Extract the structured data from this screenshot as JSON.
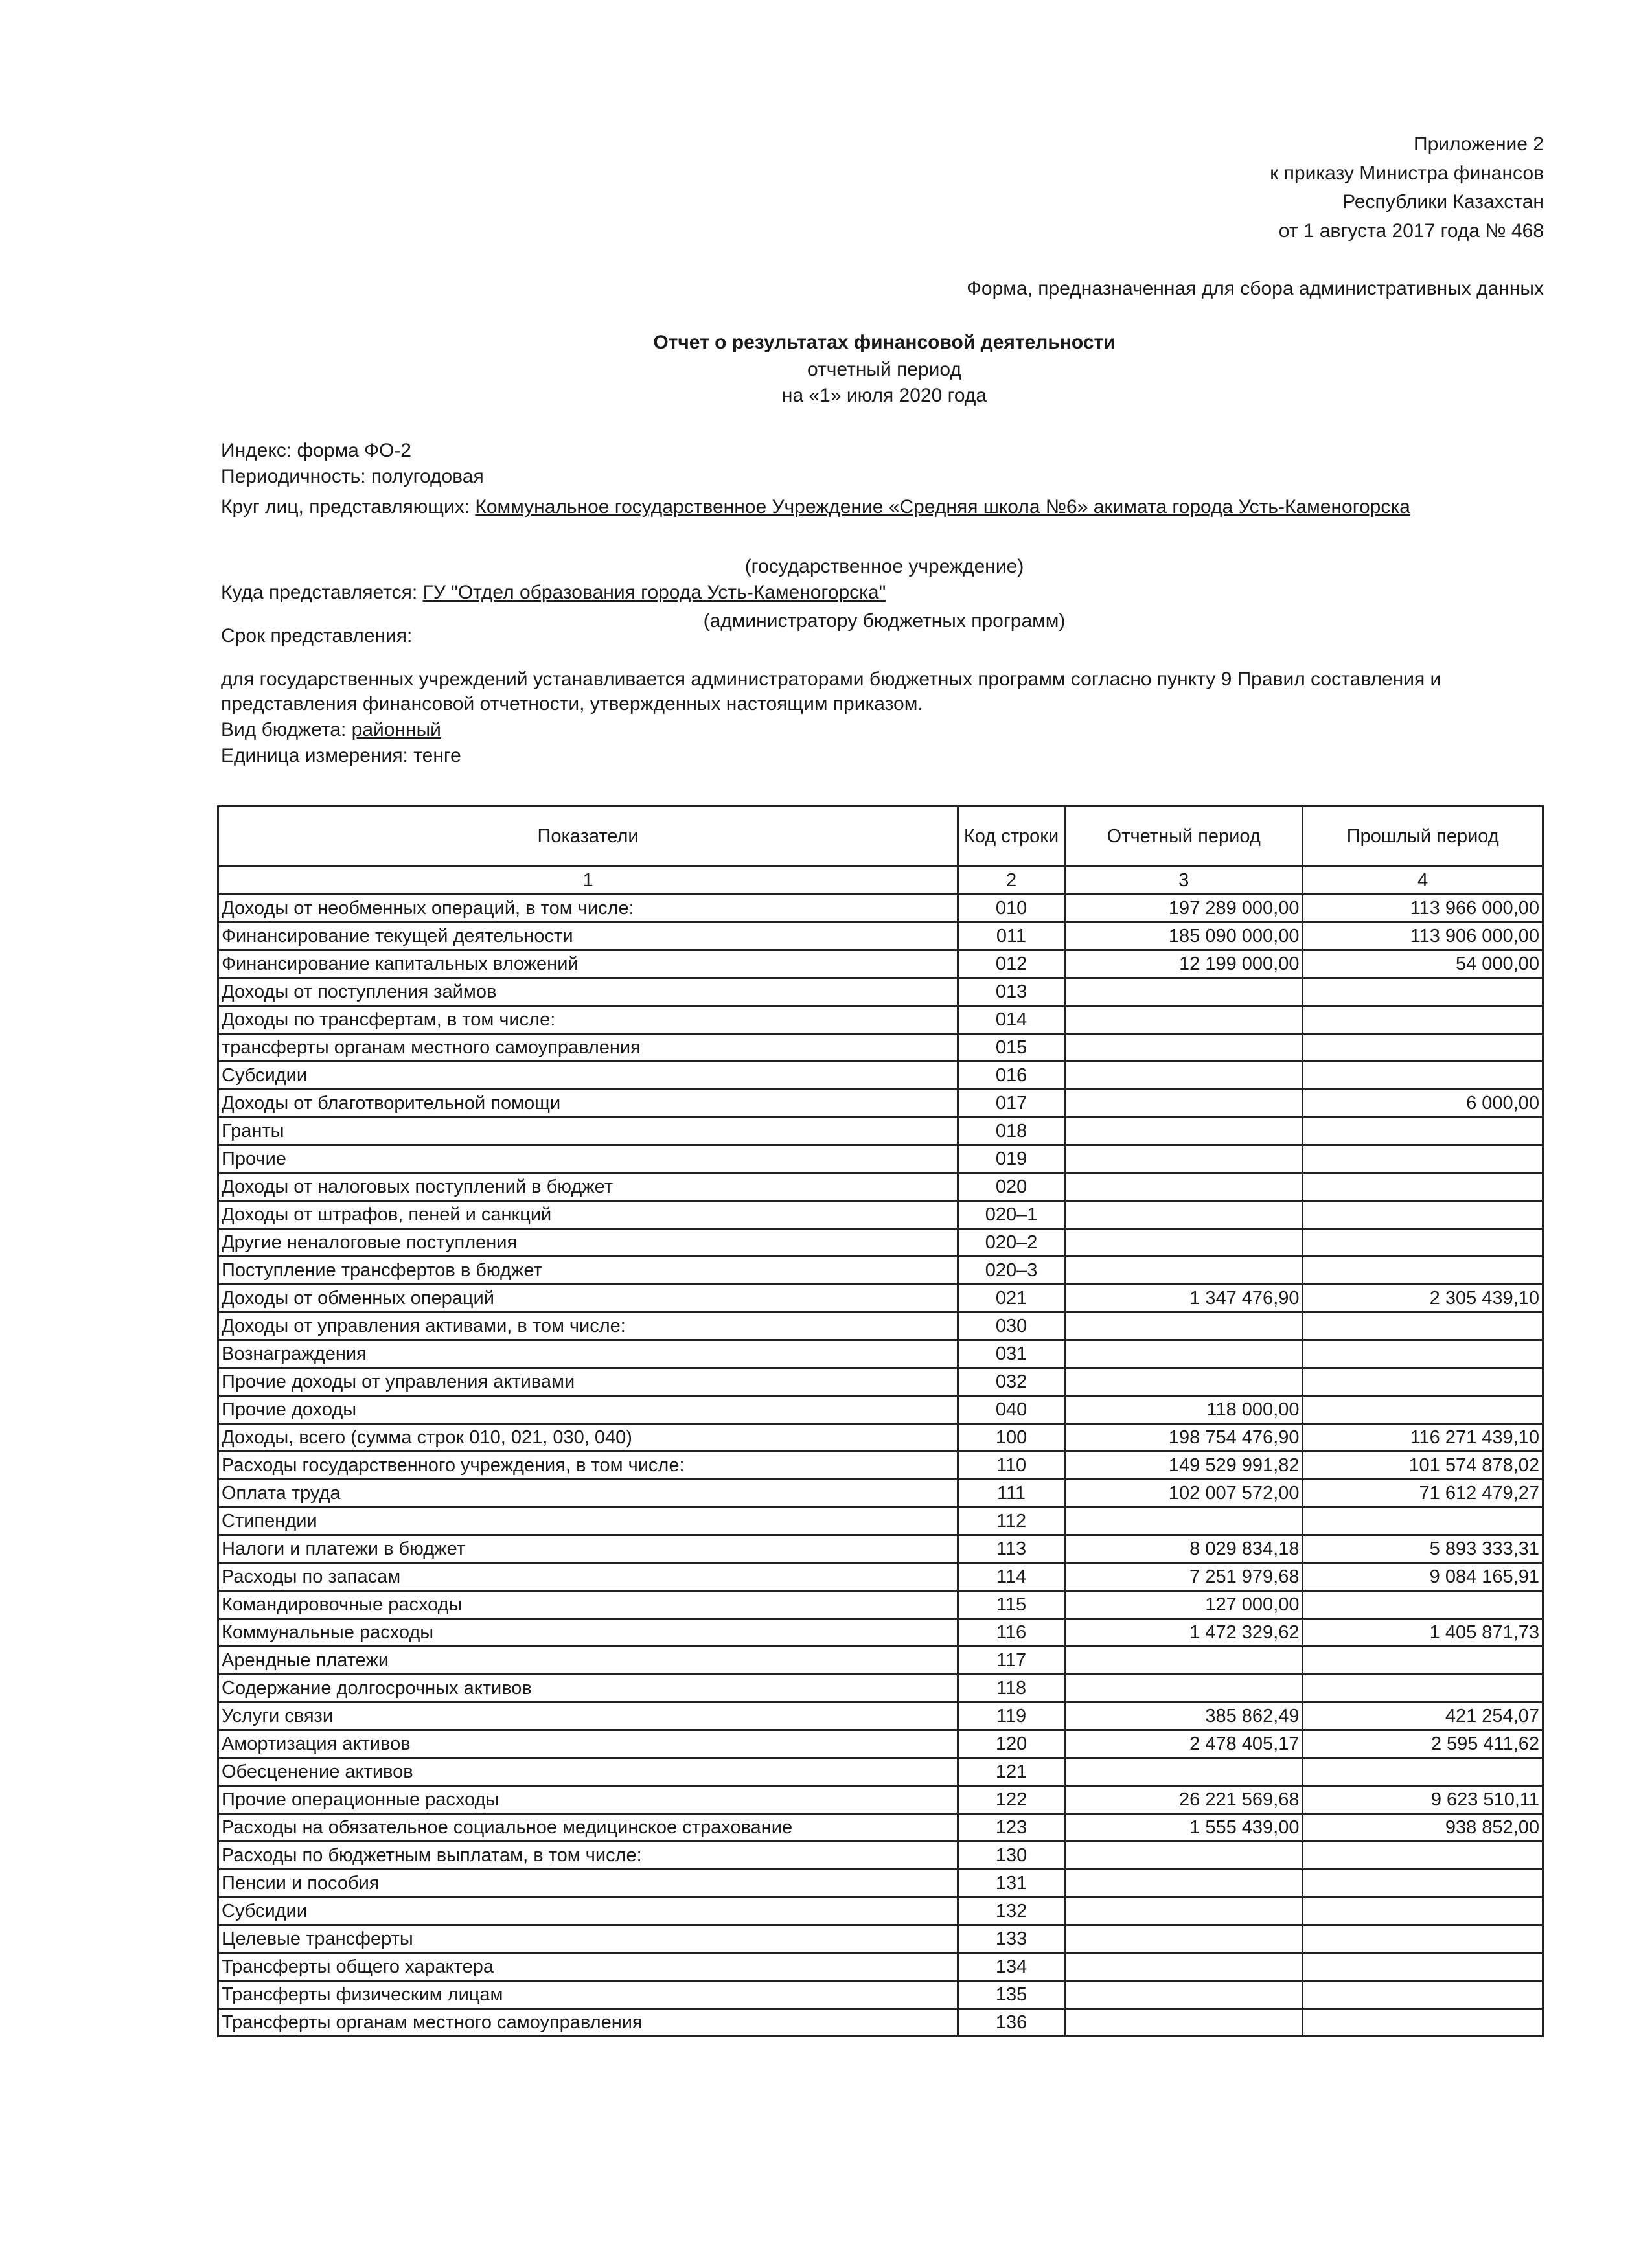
{
  "appendix": [
    "Приложение 2",
    "к приказу  Министра финансов",
    "Республики Казахстан",
    "от 1 августа 2017 года № 468"
  ],
  "form_note": "Форма, предназначенная для сбора административных данных",
  "title": "Отчет о результатах финансовой деятельности",
  "subtitle": "отчетный период",
  "date_line": "на «1» июля 2020 года",
  "index": "Индекс: форма ФО-2",
  "periodicity": "Периодичность: полугодовая",
  "submitters_label": "Круг лиц, представляющих: ",
  "submitters_value": "Коммунальное государственное Учреждение «Средняя школа №6» акимата города Усть-Каменогорска",
  "submitters_note": "(государственное учреждение)",
  "recipient_label": "Куда представляется: ",
  "recipient_value": "ГУ \"Отдел образования города Усть-Каменогорска\"",
  "recipient_note": "(администратору бюджетных программ)",
  "deadline_label": "Срок представления:",
  "deadline_text_1": "для государственных учреждений устанавливается администраторами бюджетных программ согласно пункту 9 Правил составления и",
  "deadline_text_2": "представления финансовой отчетности, утвержденных настоящим приказом.",
  "budget_label": "Вид бюджета: ",
  "budget_value": "районный",
  "unit": "Единица измерения: тенге",
  "table": {
    "headers": [
      "Показатели",
      "Код строки",
      "Отчетный период",
      "Прошлый период"
    ],
    "col_numbers": [
      "1",
      "2",
      "3",
      "4"
    ],
    "rows": [
      [
        "Доходы от необменных операций, в том числе:",
        "010",
        "197 289 000,00",
        "113 966 000,00"
      ],
      [
        "Финансирование текущей деятельности",
        "011",
        "185 090 000,00",
        "113 906 000,00"
      ],
      [
        "Финансирование капитальных вложений",
        "012",
        "12 199 000,00",
        "54 000,00"
      ],
      [
        "Доходы от поступления займов",
        "013",
        "",
        ""
      ],
      [
        "Доходы по трансфертам, в том числе:",
        "014",
        "",
        ""
      ],
      [
        "трансферты органам местного самоуправления",
        "015",
        "",
        ""
      ],
      [
        "Субсидии",
        "016",
        "",
        ""
      ],
      [
        "Доходы от благотворительной помощи",
        "017",
        "",
        "6 000,00"
      ],
      [
        "Гранты",
        "018",
        "",
        ""
      ],
      [
        "Прочие",
        "019",
        "",
        ""
      ],
      [
        "Доходы от налоговых поступлений в бюджет",
        "020",
        "",
        ""
      ],
      [
        "Доходы от штрафов, пеней и санкций",
        "020–1",
        "",
        ""
      ],
      [
        "Другие неналоговые поступления",
        "020–2",
        "",
        ""
      ],
      [
        "Поступление трансфертов в бюджет",
        "020–3",
        "",
        ""
      ],
      [
        "Доходы от обменных операций",
        "021",
        "1 347 476,90",
        "2 305 439,10"
      ],
      [
        "Доходы от управления активами, в том числе:",
        "030",
        "",
        ""
      ],
      [
        "Вознаграждения",
        "031",
        "",
        ""
      ],
      [
        "Прочие доходы от управления активами",
        "032",
        "",
        ""
      ],
      [
        "Прочие доходы",
        "040",
        "118 000,00",
        ""
      ],
      [
        "Доходы, всего (сумма строк 010, 021, 030, 040)",
        "100",
        "198 754 476,90",
        "116 271 439,10"
      ],
      [
        "Расходы государственного учреждения, в том числе:",
        "110",
        "149 529 991,82",
        "101 574 878,02"
      ],
      [
        "Оплата труда",
        "111",
        "102 007 572,00",
        "71 612 479,27"
      ],
      [
        "Стипендии",
        "112",
        "",
        ""
      ],
      [
        "Налоги и платежи в бюджет",
        "113",
        "8 029 834,18",
        "5 893 333,31"
      ],
      [
        "Расходы по запасам",
        "114",
        "7 251 979,68",
        "9 084 165,91"
      ],
      [
        "Командировочные расходы",
        "115",
        "127 000,00",
        ""
      ],
      [
        "Коммунальные расходы",
        "116",
        "1 472 329,62",
        "1 405 871,73"
      ],
      [
        "Арендные платежи",
        "117",
        "",
        ""
      ],
      [
        "Содержание долгосрочных активов",
        "118",
        "",
        ""
      ],
      [
        "Услуги связи",
        "119",
        "385 862,49",
        "421 254,07"
      ],
      [
        "Амортизация активов",
        "120",
        "2 478 405,17",
        "2 595 411,62"
      ],
      [
        "Обесценение активов",
        "121",
        "",
        ""
      ],
      [
        "Прочие операционные расходы",
        "122",
        "26 221 569,68",
        "9 623 510,11"
      ],
      [
        "Расходы на обязательное социальное медицинское страхование",
        "123",
        "1 555 439,00",
        "938 852,00"
      ],
      [
        "Расходы по бюджетным выплатам, в том числе:",
        "130",
        "",
        ""
      ],
      [
        "Пенсии и пособия",
        "131",
        "",
        ""
      ],
      [
        "Субсидии",
        "132",
        "",
        ""
      ],
      [
        "Целевые трансферты",
        "133",
        "",
        ""
      ],
      [
        "Трансферты общего характера",
        "134",
        "",
        ""
      ],
      [
        "Трансферты физическим лицам",
        "135",
        "",
        ""
      ],
      [
        "Трансферты органам местного самоуправления",
        "136",
        "",
        ""
      ]
    ]
  }
}
